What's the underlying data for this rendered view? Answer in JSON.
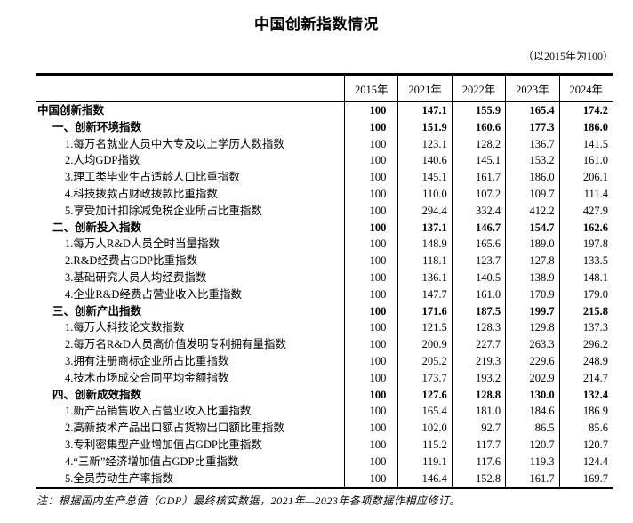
{
  "page": {
    "title": "中国创新指数情况",
    "subtitle": "（以2015年为100）",
    "note": "注：根据国内生产总值（GDP）最终核实数据，2021年—2023年各项数据作相应修订。"
  },
  "table": {
    "year_headers": [
      "2015年",
      "2021年",
      "2022年",
      "2023年",
      "2024年"
    ],
    "rows": [
      {
        "label": "中国创新指数",
        "indent": 0,
        "bold": true,
        "values": [
          "100",
          "147.1",
          "155.9",
          "165.4",
          "174.2"
        ]
      },
      {
        "label": "一、创新环境指数",
        "indent": 1,
        "bold": true,
        "values": [
          "100",
          "151.9",
          "160.6",
          "177.3",
          "186.0"
        ]
      },
      {
        "label": "1.每万名就业人员中大专及以上学历人数指数",
        "indent": 2,
        "bold": false,
        "values": [
          "100",
          "123.1",
          "128.2",
          "136.7",
          "141.5"
        ]
      },
      {
        "label": "2.人均GDP指数",
        "indent": 2,
        "bold": false,
        "values": [
          "100",
          "140.6",
          "145.1",
          "153.2",
          "161.0"
        ]
      },
      {
        "label": "3.理工类毕业生占适龄人口比重指数",
        "indent": 2,
        "bold": false,
        "values": [
          "100",
          "145.1",
          "161.7",
          "186.0",
          "206.1"
        ]
      },
      {
        "label": "4.科技拨款占财政拨款比重指数",
        "indent": 2,
        "bold": false,
        "values": [
          "100",
          "110.0",
          "107.2",
          "109.7",
          "111.4"
        ]
      },
      {
        "label": "5.享受加计扣除减免税企业所占比重指数",
        "indent": 2,
        "bold": false,
        "values": [
          "100",
          "294.4",
          "332.4",
          "412.2",
          "427.9"
        ]
      },
      {
        "label": "二、创新投入指数",
        "indent": 1,
        "bold": true,
        "values": [
          "100",
          "137.1",
          "146.7",
          "154.7",
          "162.6"
        ]
      },
      {
        "label": "1.每万人R&D人员全时当量指数",
        "indent": 2,
        "bold": false,
        "values": [
          "100",
          "148.9",
          "165.6",
          "189.0",
          "197.8"
        ]
      },
      {
        "label": "2.R&D经费占GDP比重指数",
        "indent": 2,
        "bold": false,
        "values": [
          "100",
          "118.1",
          "123.7",
          "127.8",
          "133.5"
        ]
      },
      {
        "label": "3.基础研究人员人均经费指数",
        "indent": 2,
        "bold": false,
        "values": [
          "100",
          "136.1",
          "140.5",
          "138.9",
          "148.1"
        ]
      },
      {
        "label": "4.企业R&D经费占营业收入比重指数",
        "indent": 2,
        "bold": false,
        "values": [
          "100",
          "147.7",
          "161.0",
          "170.9",
          "179.0"
        ]
      },
      {
        "label": "三、创新产出指数",
        "indent": 1,
        "bold": true,
        "values": [
          "100",
          "171.6",
          "187.5",
          "199.7",
          "215.8"
        ]
      },
      {
        "label": "1.每万人科技论文数指数",
        "indent": 2,
        "bold": false,
        "values": [
          "100",
          "121.5",
          "128.3",
          "129.8",
          "137.3"
        ]
      },
      {
        "label": "2.每万名R&D人员高价值发明专利拥有量指数",
        "indent": 2,
        "bold": false,
        "values": [
          "100",
          "200.9",
          "227.7",
          "263.3",
          "296.2"
        ]
      },
      {
        "label": "3.拥有注册商标企业所占比重指数",
        "indent": 2,
        "bold": false,
        "values": [
          "100",
          "205.2",
          "219.3",
          "229.6",
          "248.9"
        ]
      },
      {
        "label": "4.技术市场成交合同平均金额指数",
        "indent": 2,
        "bold": false,
        "values": [
          "100",
          "173.7",
          "193.2",
          "202.9",
          "214.7"
        ]
      },
      {
        "label": "四、创新成效指数",
        "indent": 1,
        "bold": true,
        "values": [
          "100",
          "127.6",
          "128.8",
          "130.0",
          "132.4"
        ]
      },
      {
        "label": "1.新产品销售收入占营业收入比重指数",
        "indent": 2,
        "bold": false,
        "values": [
          "100",
          "165.4",
          "181.0",
          "184.6",
          "186.9"
        ]
      },
      {
        "label": "2.高新技术产品出口额占货物出口额比重指数",
        "indent": 2,
        "bold": false,
        "values": [
          "100",
          "102.0",
          "92.7",
          "86.5",
          "85.6"
        ]
      },
      {
        "label": "3.专利密集型产业增加值占GDP比重指数",
        "indent": 2,
        "bold": false,
        "values": [
          "100",
          "115.2",
          "117.7",
          "120.7",
          "120.7"
        ]
      },
      {
        "label": "4.“三新”经济增加值占GDP比重指数",
        "indent": 2,
        "bold": false,
        "values": [
          "100",
          "119.1",
          "117.6",
          "119.3",
          "124.4"
        ]
      },
      {
        "label": "5.全员劳动生产率指数",
        "indent": 2,
        "bold": false,
        "values": [
          "100",
          "146.4",
          "152.8",
          "161.7",
          "169.7"
        ]
      }
    ]
  }
}
